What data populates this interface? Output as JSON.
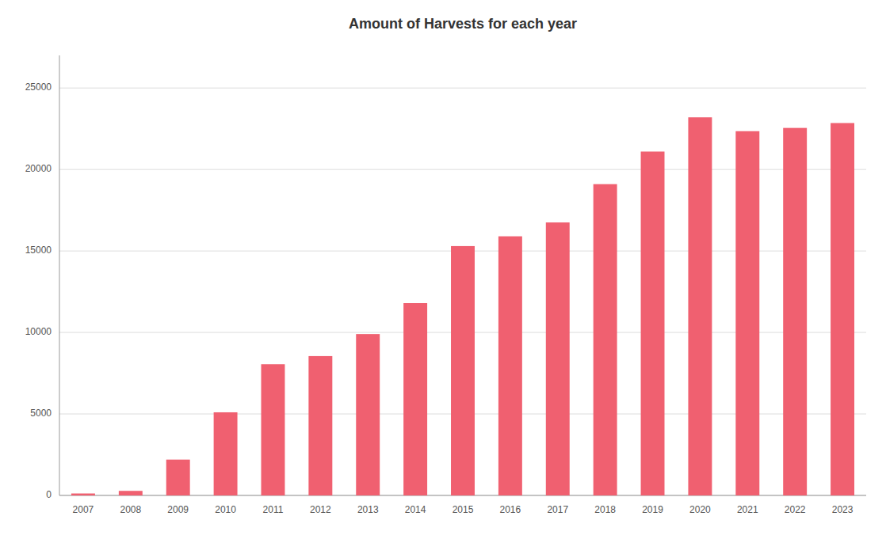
{
  "chart_data": {
    "type": "bar",
    "title": "Amount of Harvests for each year",
    "categories": [
      "2007",
      "2008",
      "2009",
      "2010",
      "2011",
      "2012",
      "2013",
      "2014",
      "2015",
      "2016",
      "2017",
      "2018",
      "2019",
      "2020",
      "2021",
      "2022",
      "2023"
    ],
    "values": [
      120,
      280,
      2200,
      5100,
      8050,
      8550,
      9900,
      11800,
      15300,
      15900,
      16750,
      19100,
      21100,
      23200,
      22350,
      22550,
      22850
    ],
    "color": "#f06070",
    "ylim": [
      0,
      27000
    ],
    "yticks": [
      0,
      5000,
      10000,
      15000,
      20000,
      25000
    ],
    "grid": true
  }
}
